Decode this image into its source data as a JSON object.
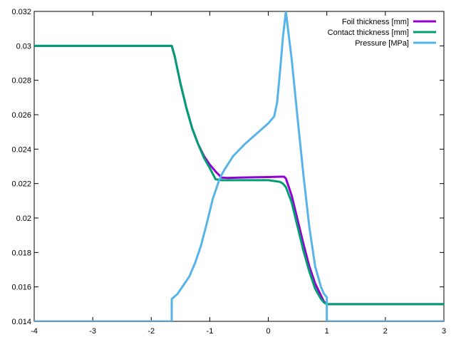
{
  "chart_data": {
    "type": "line",
    "title": "",
    "xlabel": "",
    "ylabel": "",
    "xlim": [
      -4,
      3
    ],
    "ylim": [
      0.014,
      0.032
    ],
    "xticks": [
      -4,
      -3,
      -2,
      -1,
      0,
      1,
      2,
      3
    ],
    "yticks": [
      0.014,
      0.016,
      0.018,
      0.02,
      0.022,
      0.024,
      0.026,
      0.028,
      0.03,
      0.032
    ],
    "xtick_labels": [
      "-4",
      "-3",
      "-2",
      "-1",
      "0",
      "1",
      "2",
      "3"
    ],
    "ytick_labels": [
      "0.014",
      "0.016",
      "0.018",
      "0.02",
      "0.022",
      "0.024",
      "0.026",
      "0.028",
      "0.03",
      "0.032"
    ],
    "grid": false,
    "legend_position": "top-right",
    "series": [
      {
        "name": "Foil  thickness [mm]",
        "color": "#9400d3",
        "x": [
          -4,
          -1.65,
          -1.6,
          -1.5,
          -1.4,
          -1.3,
          -1.2,
          -1.1,
          -1.0,
          -0.9,
          -0.8,
          -0.7,
          -0.5,
          -0.2,
          0.0,
          0.2,
          0.27,
          0.3,
          0.4,
          0.5,
          0.6,
          0.7,
          0.8,
          0.9,
          0.95,
          1.0,
          1.05,
          3
        ],
        "y": [
          0.03,
          0.03,
          0.0294,
          0.0278,
          0.0264,
          0.0252,
          0.0243,
          0.0236,
          0.0231,
          0.0227,
          0.02235,
          0.02233,
          0.02235,
          0.02237,
          0.02238,
          0.0224,
          0.0224,
          0.0223,
          0.0213,
          0.0199,
          0.0185,
          0.0172,
          0.0162,
          0.0155,
          0.01515,
          0.015,
          0.015,
          0.015
        ]
      },
      {
        "name": "Contact thickness [mm]",
        "color": "#009e73",
        "x": [
          -4,
          -1.65,
          -1.6,
          -1.5,
          -1.4,
          -1.3,
          -1.2,
          -1.1,
          -1.0,
          -0.9,
          -0.8,
          -0.7,
          -0.5,
          -0.2,
          0.0,
          0.2,
          0.25,
          0.3,
          0.4,
          0.5,
          0.6,
          0.7,
          0.8,
          0.9,
          0.95,
          1.0,
          1.05,
          3
        ],
        "y": [
          0.03,
          0.03,
          0.0294,
          0.0278,
          0.0264,
          0.0252,
          0.0243,
          0.0235,
          0.0229,
          0.02225,
          0.0222,
          0.0222,
          0.0222,
          0.0222,
          0.0222,
          0.0221,
          0.022,
          0.0218,
          0.0209,
          0.0195,
          0.0181,
          0.0169,
          0.0159,
          0.0153,
          0.0151,
          0.015,
          0.015,
          0.015
        ]
      },
      {
        "name": "Pressure [MPa]",
        "color": "#56b4e9",
        "x": [
          -4,
          -1.65,
          -1.65,
          -1.55,
          -1.45,
          -1.35,
          -1.25,
          -1.15,
          -1.05,
          -0.95,
          -0.85,
          -0.8,
          -0.75,
          -0.6,
          -0.4,
          -0.2,
          0.0,
          0.1,
          0.15,
          0.2,
          0.25,
          0.3,
          0.4,
          0.5,
          0.6,
          0.7,
          0.8,
          0.9,
          0.95,
          1.0,
          1.0,
          3
        ],
        "y": [
          0.014,
          0.014,
          0.0153,
          0.0156,
          0.0161,
          0.0166,
          0.0174,
          0.0184,
          0.0197,
          0.0211,
          0.0221,
          0.0225,
          0.0228,
          0.0236,
          0.0243,
          0.0249,
          0.0255,
          0.0259,
          0.0267,
          0.0285,
          0.0305,
          0.032,
          0.0292,
          0.0258,
          0.0225,
          0.0195,
          0.0172,
          0.016,
          0.0156,
          0.0154,
          0.014,
          0.014
        ]
      }
    ]
  }
}
